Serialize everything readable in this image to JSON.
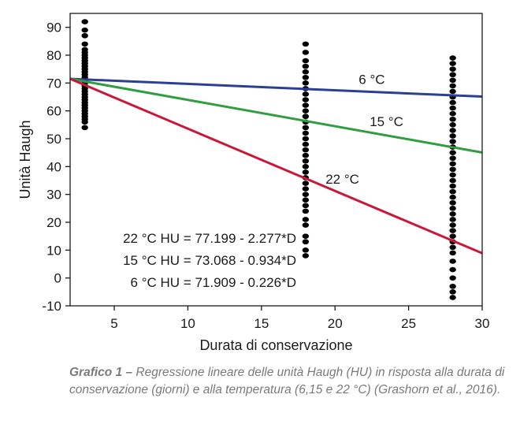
{
  "chart_data": {
    "type": "scatter",
    "xlabel": "Durata di conservazione",
    "ylabel": "Unità Haugh",
    "xlim": [
      2,
      30
    ],
    "ylim": [
      -10,
      95
    ],
    "xticks": [
      5,
      10,
      15,
      20,
      25,
      30
    ],
    "yticks": [
      -10,
      0,
      10,
      20,
      30,
      40,
      50,
      60,
      70,
      80,
      90
    ],
    "grid": false,
    "points": [
      {
        "x": 3,
        "y": [
          54,
          56,
          57,
          58,
          59,
          60,
          61,
          62,
          63,
          64,
          65,
          66,
          67,
          68,
          69,
          70,
          71,
          72,
          73,
          74,
          75,
          76,
          77,
          78,
          79,
          80,
          81,
          82,
          84,
          87,
          89,
          92
        ]
      },
      {
        "x": 18,
        "y": [
          8,
          10,
          13,
          15,
          19,
          21,
          24,
          26,
          28,
          30,
          32,
          34,
          36,
          38,
          40,
          42,
          44,
          46,
          48,
          50,
          52,
          54,
          56,
          58,
          60,
          62,
          64,
          66,
          68,
          70,
          72,
          74,
          76,
          78,
          81,
          84
        ]
      },
      {
        "x": 28,
        "y": [
          -7,
          -5,
          -3,
          0,
          3,
          6,
          9,
          11,
          13,
          15,
          17,
          19,
          21,
          23,
          25,
          27,
          29,
          31,
          33,
          35,
          37,
          39,
          41,
          43,
          45,
          47,
          49,
          51,
          53,
          55,
          57,
          59,
          61,
          63,
          65,
          67,
          69,
          71,
          73,
          75,
          77,
          79
        ]
      }
    ],
    "series": [
      {
        "name": "6 °C",
        "color": "#2b3f94",
        "intercept": 71.909,
        "slope": -0.226
      },
      {
        "name": "15 °C",
        "color": "#2f9e3f",
        "intercept": 73.068,
        "slope": -0.934
      },
      {
        "name": "22 °C",
        "color": "#c8193a",
        "intercept": 77.199,
        "slope": -2.277
      }
    ],
    "line_x_range": [
      2,
      30
    ],
    "line_start_y": 71.5,
    "equations": [
      "22 °C  HU = 77.199 - 2.277*D",
      "15 °C  HU = 73.068 - 0.934*D",
      "6 °C  HU = 71.909 - 0.226*D"
    ]
  },
  "caption": {
    "label": "Grafico 1 –",
    "text": " Regressione lineare delle unità Haugh (HU) in risposta alla durata di conservazione (giorni) e alla temperatura (6,15 e 22 °C) (Grashorn et al., 2016)."
  }
}
